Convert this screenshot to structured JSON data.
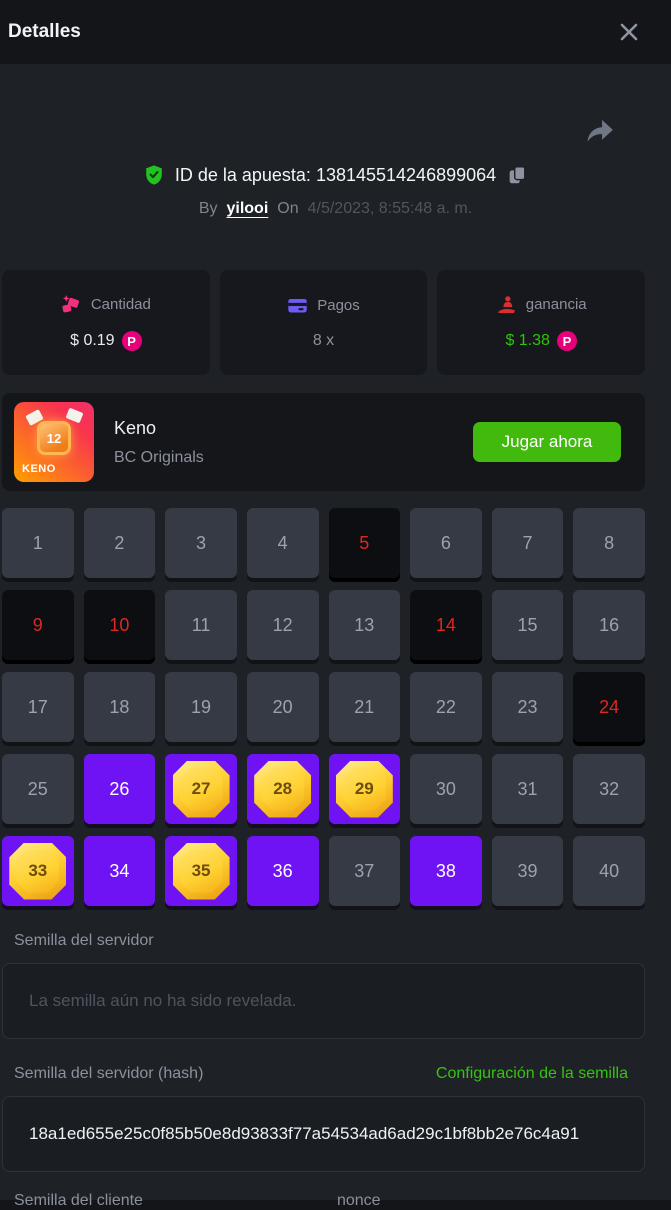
{
  "header": {
    "title": "Detalles"
  },
  "bet": {
    "id_label": "ID de la apuesta:",
    "id_value": "138145514246899064",
    "by_label": "By",
    "username": "yilooi",
    "on_label": "On",
    "date": "4/5/2023, 8:55:48 a. m."
  },
  "stats": {
    "amount": {
      "label": "Cantidad",
      "value": "$ 0.19",
      "icon": "gems-icon"
    },
    "payout": {
      "label": "Pagos",
      "value": "8 x",
      "icon": "card-icon"
    },
    "profit": {
      "label": "ganancia",
      "value": "$ 1.38",
      "icon": "hand-person-icon"
    }
  },
  "coin": {
    "symbol": "P",
    "color": "#e6007a"
  },
  "game": {
    "name": "Keno",
    "provider": "BC Originals",
    "tile_number": "12",
    "tile_label": "KENO",
    "play_button": "Jugar ahora"
  },
  "grid": {
    "cells": [
      {
        "n": 1,
        "state": "normal"
      },
      {
        "n": 2,
        "state": "normal"
      },
      {
        "n": 3,
        "state": "normal"
      },
      {
        "n": 4,
        "state": "normal"
      },
      {
        "n": 5,
        "state": "miss"
      },
      {
        "n": 6,
        "state": "normal"
      },
      {
        "n": 7,
        "state": "normal"
      },
      {
        "n": 8,
        "state": "normal"
      },
      {
        "n": 9,
        "state": "miss"
      },
      {
        "n": 10,
        "state": "miss"
      },
      {
        "n": 11,
        "state": "normal"
      },
      {
        "n": 12,
        "state": "normal"
      },
      {
        "n": 13,
        "state": "normal"
      },
      {
        "n": 14,
        "state": "miss"
      },
      {
        "n": 15,
        "state": "normal"
      },
      {
        "n": 16,
        "state": "normal"
      },
      {
        "n": 17,
        "state": "normal"
      },
      {
        "n": 18,
        "state": "normal"
      },
      {
        "n": 19,
        "state": "normal"
      },
      {
        "n": 20,
        "state": "normal"
      },
      {
        "n": 21,
        "state": "normal"
      },
      {
        "n": 22,
        "state": "normal"
      },
      {
        "n": 23,
        "state": "normal"
      },
      {
        "n": 24,
        "state": "miss"
      },
      {
        "n": 25,
        "state": "normal"
      },
      {
        "n": 26,
        "state": "selected"
      },
      {
        "n": 27,
        "state": "hit"
      },
      {
        "n": 28,
        "state": "hit"
      },
      {
        "n": 29,
        "state": "hit"
      },
      {
        "n": 30,
        "state": "normal"
      },
      {
        "n": 31,
        "state": "normal"
      },
      {
        "n": 32,
        "state": "normal"
      },
      {
        "n": 33,
        "state": "hit"
      },
      {
        "n": 34,
        "state": "selected"
      },
      {
        "n": 35,
        "state": "hit"
      },
      {
        "n": 36,
        "state": "selected"
      },
      {
        "n": 37,
        "state": "normal"
      },
      {
        "n": 38,
        "state": "selected"
      },
      {
        "n": 39,
        "state": "normal"
      },
      {
        "n": 40,
        "state": "normal"
      }
    ]
  },
  "seeds": {
    "server_seed_label": "Semilla del servidor",
    "server_seed_placeholder": "La semilla aún no ha sido revelada.",
    "server_hash_label": "Semilla del servidor (hash)",
    "seed_settings_link": "Configuración de la semilla",
    "server_hash_value": "18a1ed655e25c0f85b50e8d93833f77a54534ad6ad29c1bf8bb2e76c4a91",
    "client_seed_label": "Semilla del cliente",
    "nonce_label": "nonce"
  },
  "colors": {
    "accent_purple": "#7013f4",
    "hit_gold": "#ffd233",
    "miss_red": "#dd2820",
    "play_green": "#41ba0d",
    "link_green": "#35c411",
    "profit_green": "#2fc10e",
    "coin_pink": "#e6007a"
  }
}
